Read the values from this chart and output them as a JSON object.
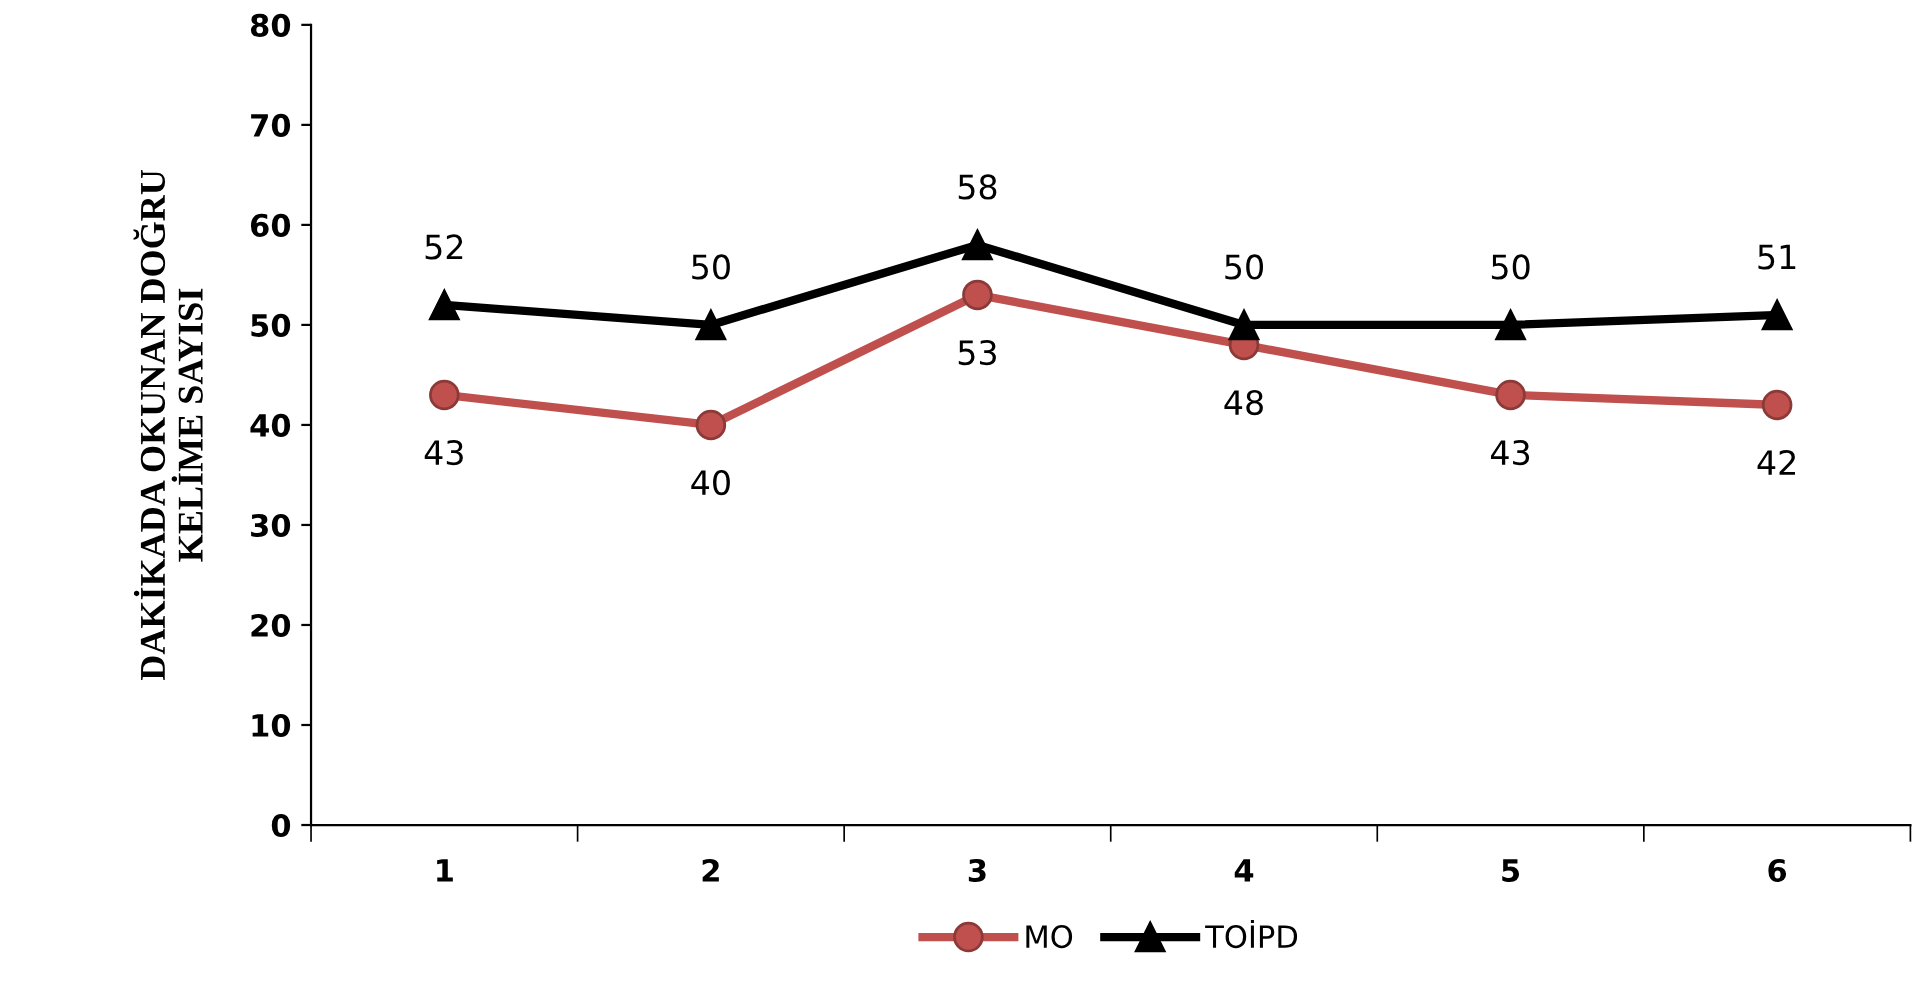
{
  "chart_data": {
    "type": "line",
    "ylabel": "DAKİKADA OKUNAN DOĞRU\nKELİME SAYISI",
    "categories": [
      "1",
      "2",
      "3",
      "4",
      "5",
      "6"
    ],
    "series": [
      {
        "name": "MO",
        "color": "#c0504d",
        "marker": "circle",
        "values": [
          43,
          40,
          53,
          48,
          43,
          42
        ]
      },
      {
        "name": "TOİPD",
        "color": "#000000",
        "marker": "triangle",
        "values": [
          52,
          50,
          58,
          50,
          50,
          51
        ]
      }
    ],
    "ylim": [
      0,
      80
    ],
    "yticks": [
      0,
      10,
      20,
      30,
      40,
      50,
      60,
      70,
      80
    ],
    "grid": false,
    "legend": "bottom",
    "data_labels": true
  }
}
